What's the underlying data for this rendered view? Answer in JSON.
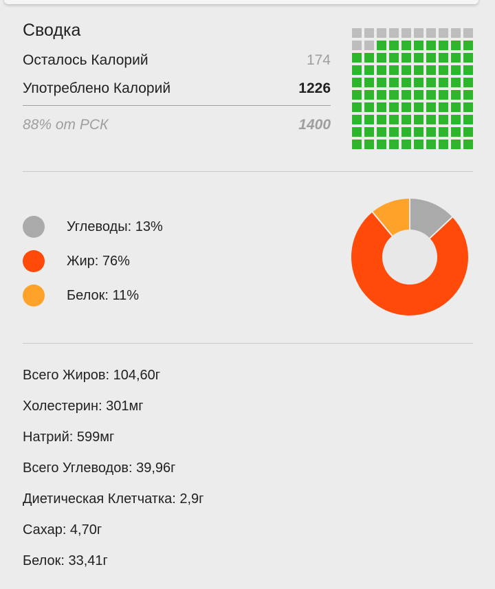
{
  "summary": {
    "title": "Сводка",
    "remaining_label": "Осталось Калорий",
    "remaining_value": "174",
    "consumed_label": "Употреблено Калорий",
    "consumed_value": "1226",
    "rdi_label": "88% от РСК",
    "rdi_value": "1400"
  },
  "calorie_grid": {
    "total_squares": 100,
    "filled_squares": 88,
    "filled_color": "#2db52d",
    "empty_color": "#bdbdbd"
  },
  "macros": {
    "items": [
      {
        "label": "Углеводы: 13%",
        "percent": 13,
        "color": "#aaaaaa"
      },
      {
        "label": "Жир: 76%",
        "percent": 76,
        "color": "#ff4a0a"
      },
      {
        "label": "Белок: 11%",
        "percent": 11,
        "color": "#ffa229"
      }
    ]
  },
  "nutrients": [
    "Всего Жиров: 104,60г",
    "Холестерин: 301мг",
    "Натрий: 599мг",
    "Всего Углеводов: 39,96г",
    "Диетическая Клетчатка: 2,9г",
    "Сахар: 4,70г",
    "Белок: 33,41г"
  ]
}
